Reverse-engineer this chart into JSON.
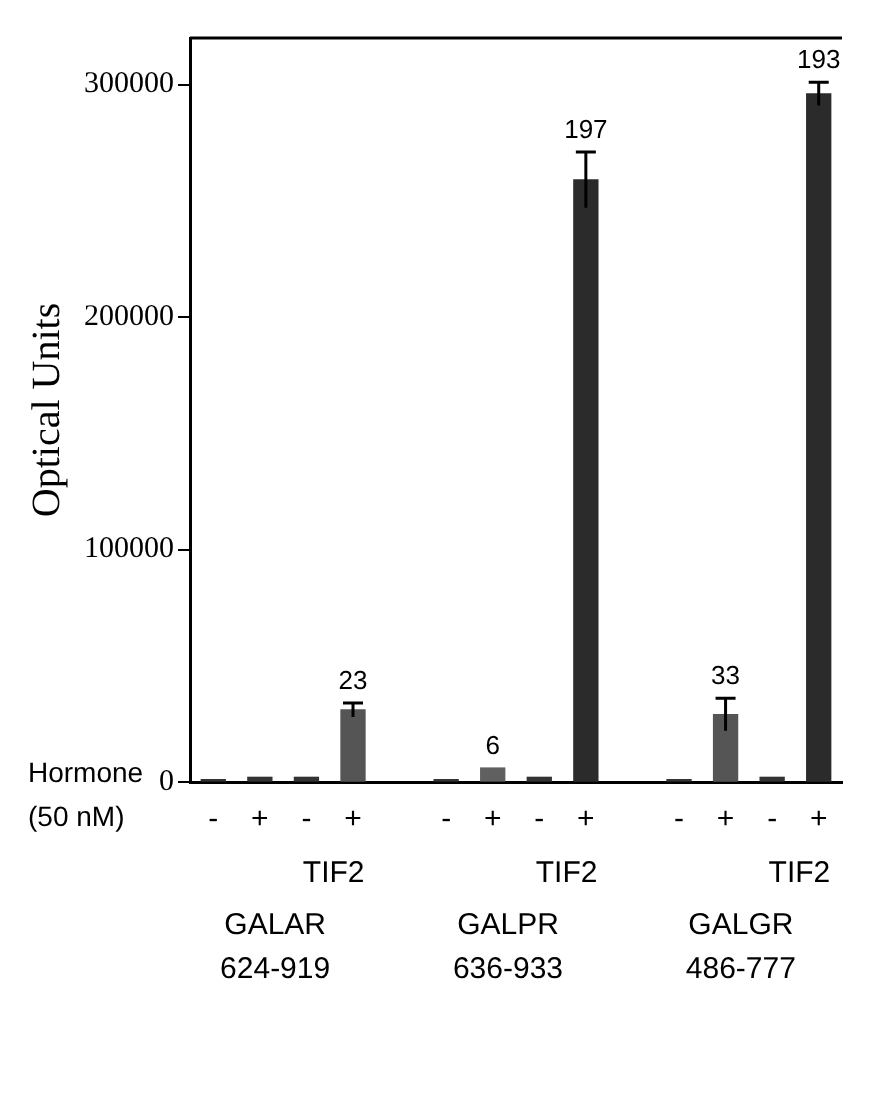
{
  "chart_data": {
    "type": "bar",
    "ylabel": "Optical Units",
    "categories": [
      "-",
      "+",
      "-",
      "+",
      null,
      "-",
      "+",
      "-",
      "+",
      null,
      "-",
      "+",
      "-",
      "+"
    ],
    "values": [
      1000,
      2000,
      2000,
      31000,
      null,
      1000,
      6000,
      2000,
      259000,
      null,
      1000,
      29000,
      2000,
      296000
    ],
    "errors": [
      null,
      null,
      null,
      3000,
      null,
      null,
      null,
      null,
      12000,
      null,
      null,
      7000,
      null,
      5000
    ],
    "colors": [
      "#333333",
      "#333333",
      "#333333",
      "#555555",
      "#000000",
      "#333333",
      "#606060",
      "#333333",
      "#2b2b2b",
      "#000000",
      "#333333",
      "#555555",
      "#333333",
      "#2b2b2b"
    ],
    "ylim": [
      0,
      320000
    ],
    "yticks": [
      0,
      100000,
      200000,
      300000
    ],
    "grid": false,
    "legend": false,
    "annotations": [
      "Hormone",
      "(50 nM)",
      "TIF2",
      "TIF2",
      "TIF2",
      "GALAR 624-919",
      "GALPR 636-933",
      "GALGR 486-777",
      {
        "text": "23",
        "y": 34000
      },
      {
        "text": "6",
        "y": 6000
      },
      {
        "text": "197",
        "y": 271000
      },
      {
        "text": "33",
        "y": 36000
      },
      {
        "text": "193",
        "y": 301000
      }
    ]
  }
}
